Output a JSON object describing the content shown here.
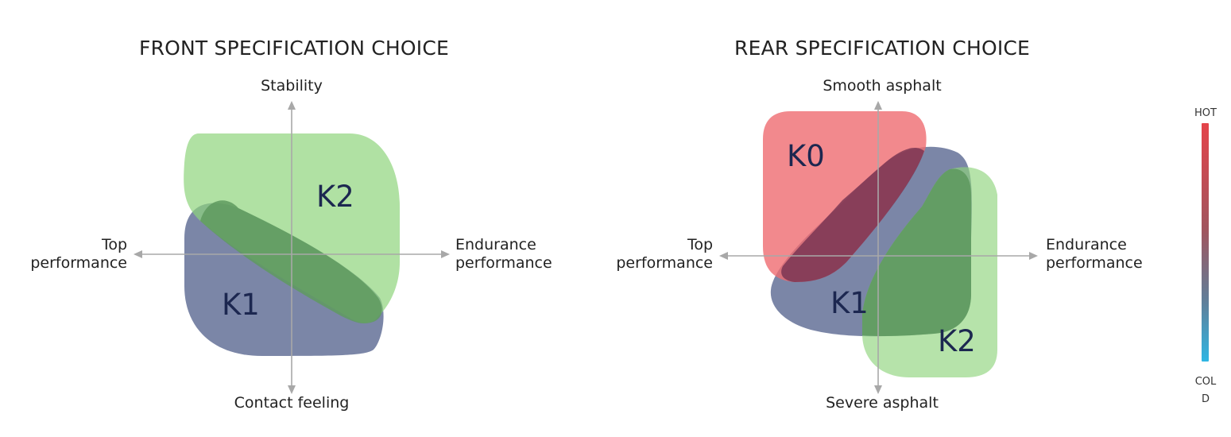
{
  "front": {
    "title": "FRONT SPECIFICATION CHOICE",
    "axis_top": "Stability",
    "axis_bottom": "Contact feeling",
    "axis_left": [
      "Top",
      "performance"
    ],
    "axis_right": [
      "Endurance",
      "performance"
    ],
    "zones": [
      {
        "label": "K2",
        "color": "#8fd47c"
      },
      {
        "label": "K1",
        "color": "#4f5e8a"
      }
    ]
  },
  "rear": {
    "title": "REAR SPECIFICATION CHOICE",
    "axis_top": "Smooth asphalt",
    "axis_bottom": "Severe asphalt",
    "axis_left": [
      "Top",
      "performance"
    ],
    "axis_right": [
      "Endurance",
      "performance"
    ],
    "zones": [
      {
        "label": "K0",
        "color": "#ef6b70"
      },
      {
        "label": "K1",
        "color": "#4f5e8a"
      },
      {
        "label": "K2",
        "color": "#8fd47c"
      }
    ]
  },
  "legend": {
    "top_label": "HOT",
    "bottom_label": [
      "COL",
      "D"
    ],
    "color_hot": "#e4434a",
    "color_cold": "#2fb6e3"
  }
}
